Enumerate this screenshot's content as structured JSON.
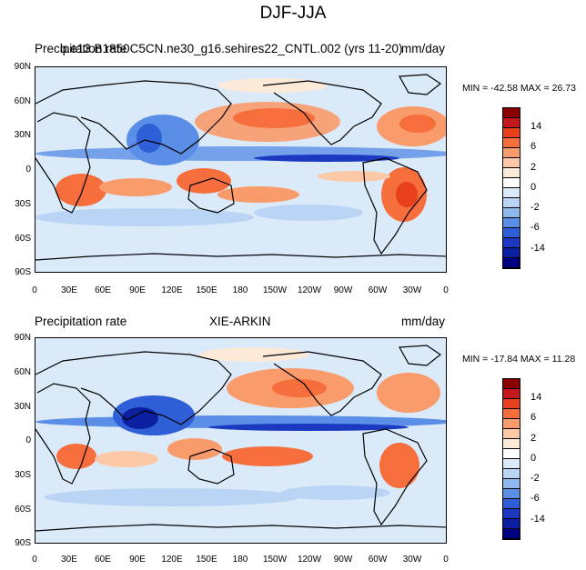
{
  "figure": {
    "title": "DJF-JJA"
  },
  "panels": [
    {
      "left_label": "Precipitation rate",
      "center_label": "b.e13.B1850C5CN.ne30_g16.sehires22_CNTL.002 (yrs 11-20)",
      "right_label": "mm/day",
      "min_label": "MIN =",
      "min_value": "-42.58",
      "max_label": "MAX =",
      "max_value": "26.73"
    },
    {
      "left_label": "Precipitation rate",
      "center_label": "XIE-ARKIN",
      "right_label": "mm/day",
      "min_label": "MIN =",
      "min_value": "-17.84",
      "max_label": "MAX =",
      "max_value": "11.28"
    }
  ],
  "axes": {
    "lat_ticks": [
      "90N",
      "60N",
      "30N",
      "0",
      "30S",
      "60S",
      "90S"
    ],
    "lon_ticks": [
      "0",
      "30E",
      "60E",
      "90E",
      "120E",
      "150E",
      "180",
      "150W",
      "120W",
      "90W",
      "60W",
      "30W",
      "0"
    ]
  },
  "colorbar": {
    "labels": [
      "14",
      "6",
      "2",
      "0",
      "-2",
      "-6",
      "-14"
    ],
    "colors": [
      "#8b0000",
      "#c4191c",
      "#e8401d",
      "#f66e3c",
      "#fa9b6b",
      "#fcc8a6",
      "#fde9d8",
      "#ffffff",
      "#dbeaf9",
      "#b9d4f5",
      "#8db9ef",
      "#5b8ee6",
      "#2f5fd7",
      "#1b39c0",
      "#0c1fa0",
      "#000080"
    ]
  }
}
